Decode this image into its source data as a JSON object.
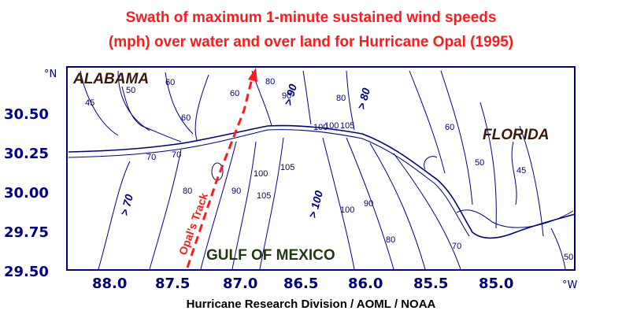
{
  "title": {
    "line1": "Swath of maximum 1-minute sustained wind speeds",
    "line2": "(mph) over water and over land for Hurricane Opal (1995)"
  },
  "credit": "Hurricane Research Division / AOML / NOAA",
  "axes": {
    "lat_ticks": [
      "30.50",
      "30.25",
      "30.00",
      "29.75",
      "29.50"
    ],
    "lon_ticks": [
      "88.0",
      "87.5",
      "87.0",
      "86.5",
      "86.0",
      "85.5",
      "85.0"
    ],
    "lat_unit": "°N",
    "lon_unit": "°W"
  },
  "labels": {
    "alabama": "ALABAMA",
    "florida": "FLORIDA",
    "gulf": "GULF OF MEXICO",
    "track": "Opal's Track"
  },
  "contour_labels": [
    "45",
    "50",
    "60",
    "60",
    "70",
    "80",
    "80",
    "90",
    "100",
    "100",
    "105",
    "105",
    "100",
    "90",
    "80",
    "70",
    "60",
    "50",
    "45",
    "50",
    "60",
    "70",
    "80",
    "90",
    "100",
    "105"
  ],
  "region_labels": [
    "> 70",
    "> 80",
    "> 90",
    "> 100",
    "> 80"
  ],
  "colors": {
    "title": "#ff1a1a",
    "axis": "#000080",
    "contour": "#000080",
    "track": "#ff1a1a"
  }
}
